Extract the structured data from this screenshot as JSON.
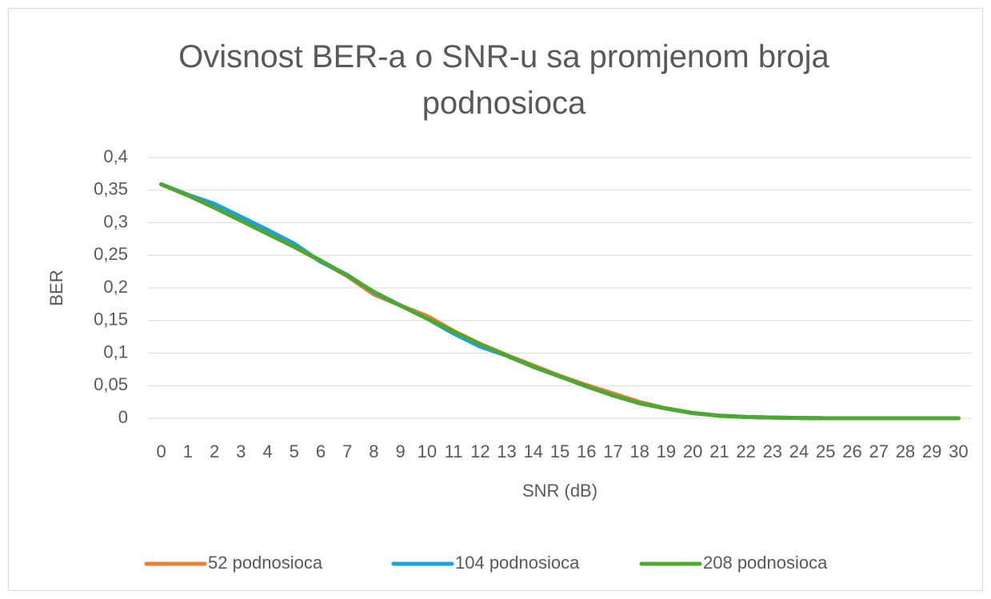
{
  "chart_data": {
    "type": "line",
    "title": "Ovisnost BER-a o SNR-u sa promjenom broja podnosioca",
    "x_label": "SNR (dB)",
    "y_label": "BER",
    "categories": [
      "0",
      "1",
      "2",
      "3",
      "4",
      "5",
      "6",
      "7",
      "8",
      "9",
      "10",
      "11",
      "12",
      "13",
      "14",
      "15",
      "16",
      "17",
      "18",
      "19",
      "20",
      "21",
      "22",
      "23",
      "24",
      "25",
      "26",
      "27",
      "28",
      "29",
      "30"
    ],
    "series": [
      {
        "name": "52 podnosioca",
        "color": "#ed7d31",
        "values": [
          0.359,
          0.342,
          0.326,
          0.305,
          0.285,
          0.263,
          0.241,
          0.218,
          0.19,
          0.173,
          0.157,
          0.134,
          0.114,
          0.097,
          0.081,
          0.065,
          0.051,
          0.038,
          0.025,
          0.015,
          0.008,
          0.004,
          0.002,
          0.001,
          0.0005,
          0,
          0,
          0,
          0,
          0,
          0
        ]
      },
      {
        "name": "104 podnosioca",
        "color": "#1ba1e2",
        "values": [
          0.359,
          0.343,
          0.329,
          0.309,
          0.289,
          0.268,
          0.24,
          0.22,
          0.193,
          0.173,
          0.153,
          0.13,
          0.11,
          0.096,
          0.079,
          0.064,
          0.049,
          0.035,
          0.023,
          0.015,
          0.008,
          0.004,
          0.002,
          0.001,
          0.0005,
          0,
          0,
          0,
          0,
          0,
          0
        ]
      },
      {
        "name": "208 podnosioca",
        "color": "#4ea72e",
        "values": [
          0.359,
          0.342,
          0.323,
          0.303,
          0.283,
          0.263,
          0.242,
          0.219,
          0.194,
          0.173,
          0.153,
          0.133,
          0.114,
          0.096,
          0.079,
          0.064,
          0.049,
          0.035,
          0.023,
          0.015,
          0.008,
          0.004,
          0.002,
          0.001,
          0.0005,
          0,
          0,
          0,
          0,
          0,
          0
        ]
      }
    ],
    "ylim": [
      0,
      0.4
    ],
    "yticks": [
      0,
      {
        "value": 0.05,
        "label": "0,05"
      },
      {
        "value": 0.1,
        "label": "0,1"
      },
      {
        "value": 0.15,
        "label": "0,15"
      },
      {
        "value": 0.2,
        "label": "0,2"
      },
      {
        "value": 0.25,
        "label": "0,25"
      },
      {
        "value": 0.3,
        "label": "0,3"
      },
      {
        "value": 0.35,
        "label": "0,35"
      },
      {
        "value": 0.4,
        "label": "0,4"
      }
    ],
    "grid": true,
    "legend": "bottom"
  }
}
